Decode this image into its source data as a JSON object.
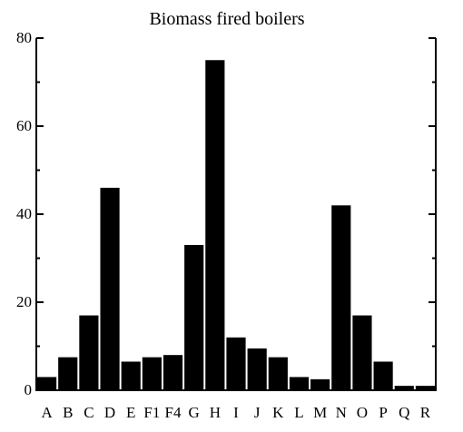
{
  "chart_data": {
    "type": "bar",
    "title": "Biomass fired boilers",
    "xlabel": "",
    "ylabel": "",
    "ylim": [
      0,
      80
    ],
    "yticks": [
      "0",
      "20",
      "40",
      "60",
      "80"
    ],
    "grid": false,
    "legend": "none",
    "categories": [
      "A",
      "B",
      "C",
      "D",
      "E",
      "F1",
      "F4",
      "G",
      "H",
      "I",
      "J",
      "K",
      "L",
      "M",
      "N",
      "O",
      "P",
      "Q",
      "R"
    ],
    "values": [
      3,
      7.5,
      17,
      46,
      6.5,
      7.5,
      8,
      33,
      75,
      12,
      9.5,
      7.5,
      3,
      2.5,
      42,
      17,
      6.5,
      1,
      1
    ],
    "colors": {
      "bar": "#000000",
      "axis": "#000000",
      "background": "#ffffff"
    }
  }
}
